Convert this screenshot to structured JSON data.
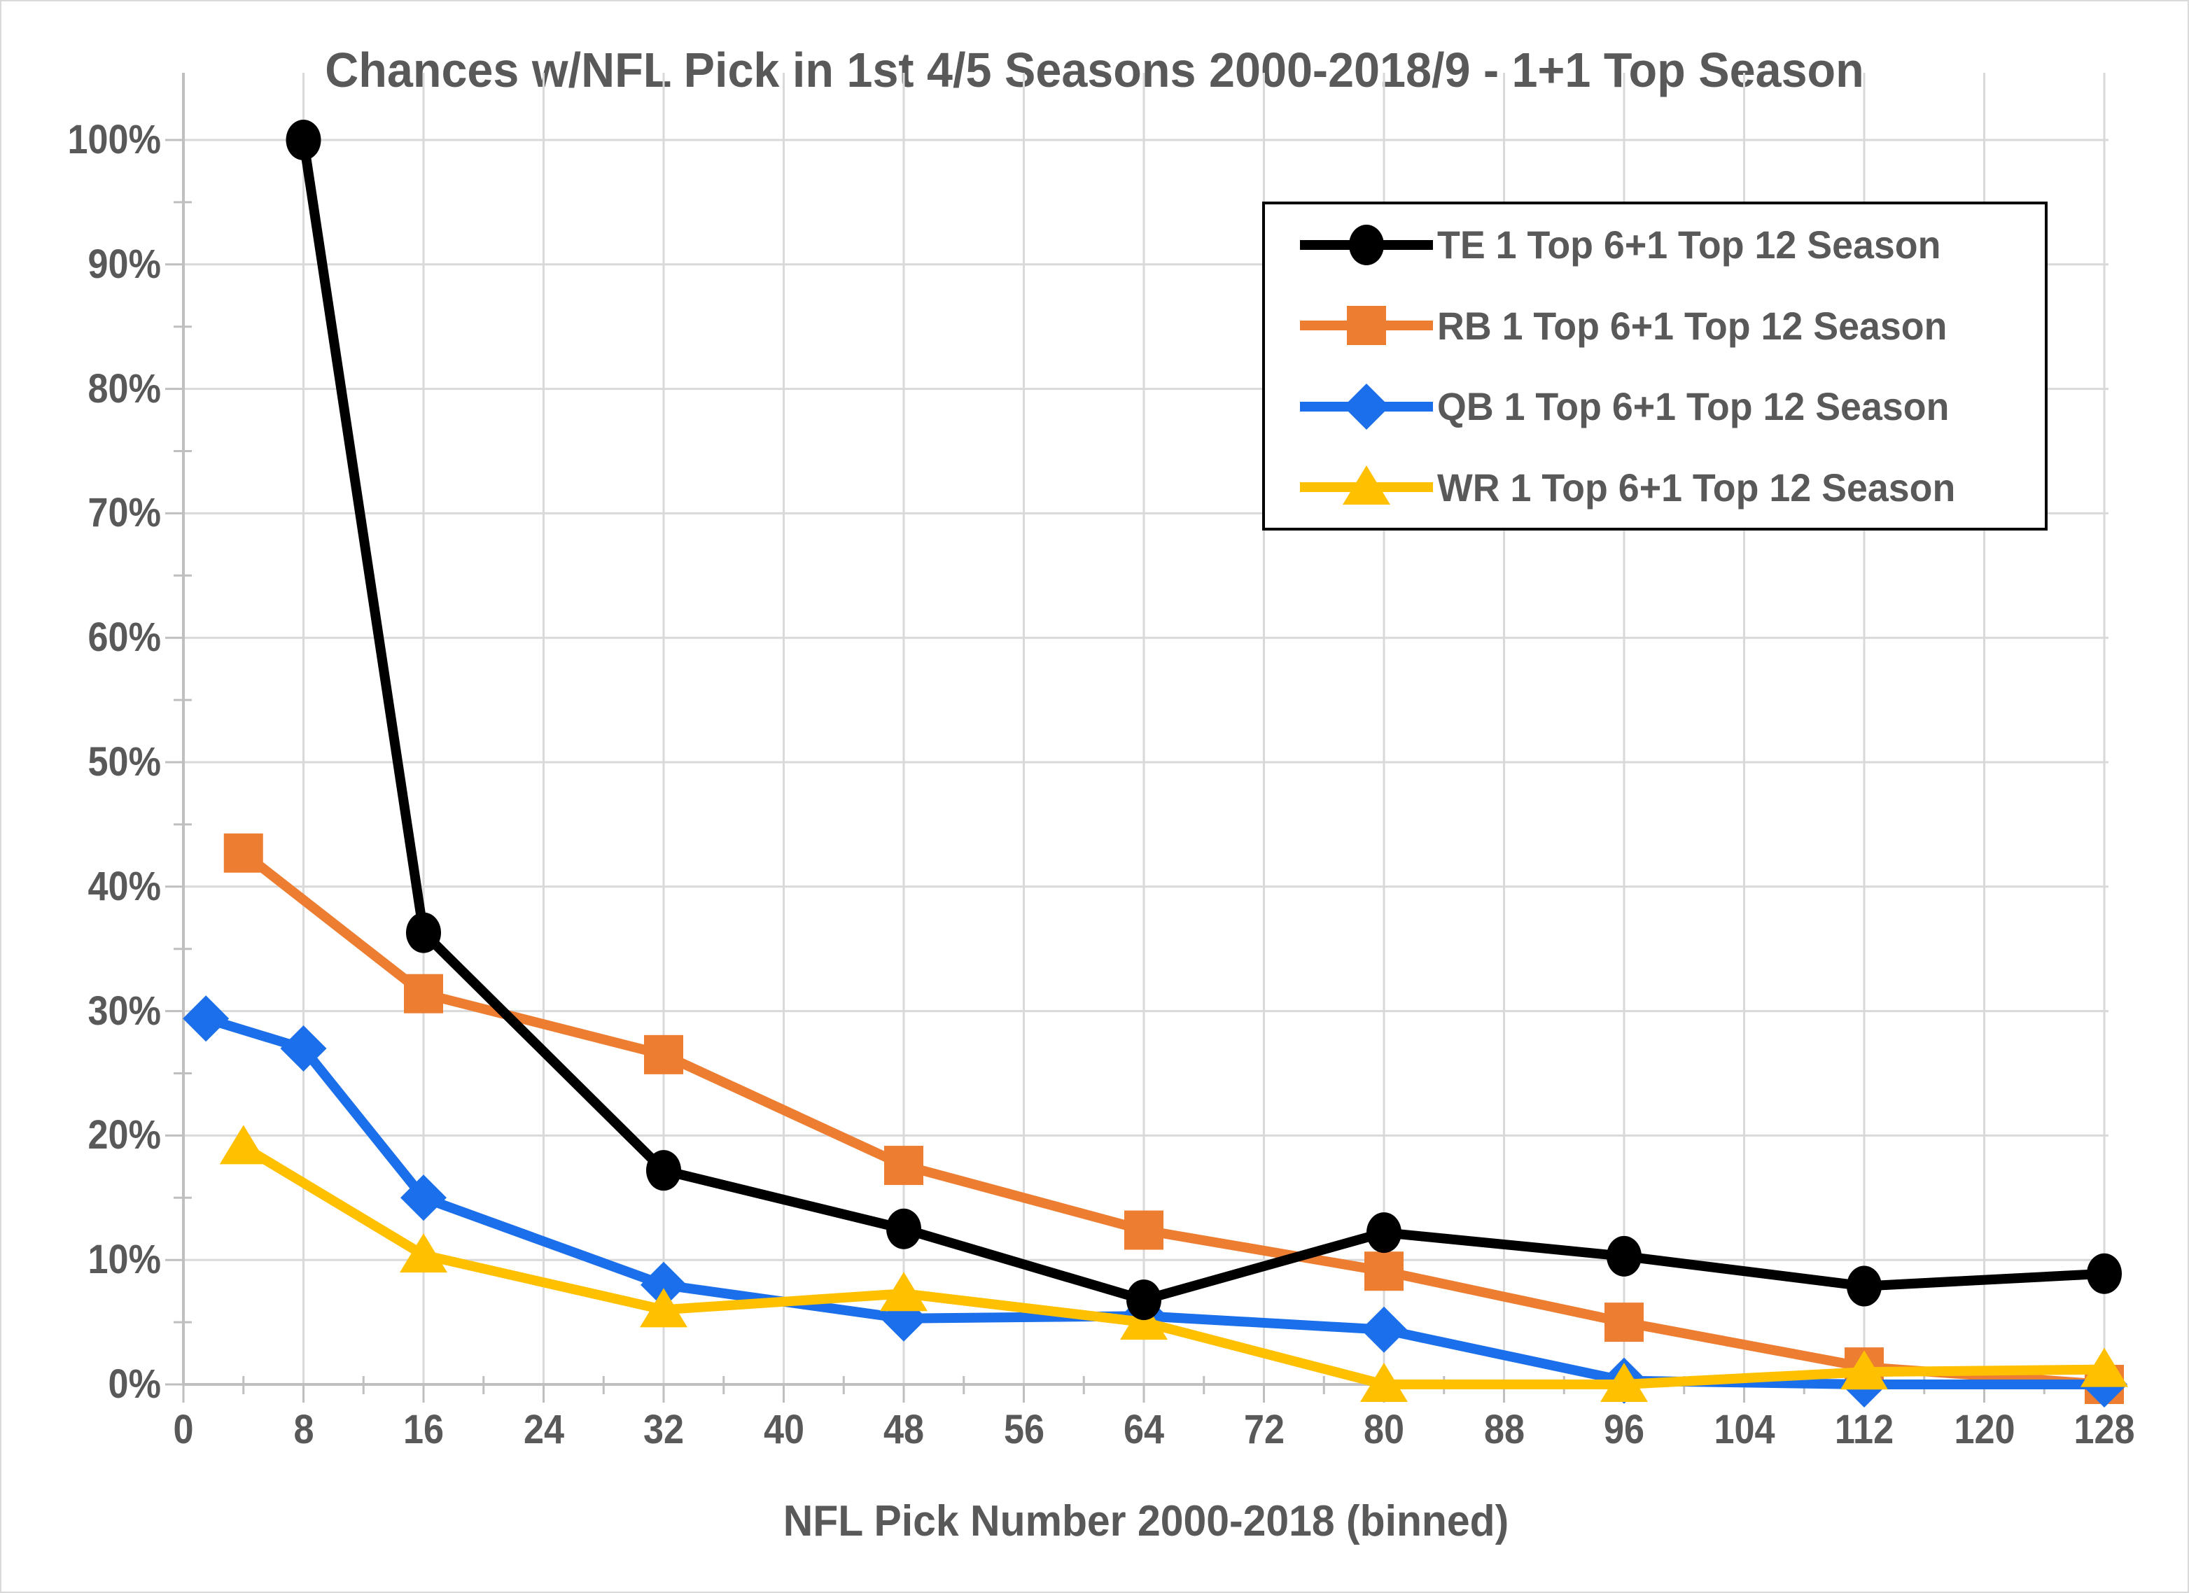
{
  "chart_data": {
    "type": "line",
    "title": "Chances w/NFL Pick in 1st 4/5 Seasons 2000-2018/9 - 1+1 Top Season",
    "xlabel": "NFL Pick Number 2000-2018 (binned)",
    "ylabel": "",
    "xlim": [
      0,
      131
    ],
    "ylim": [
      0,
      105
    ],
    "grid": "both",
    "legend_position": "top-right",
    "x_ticks": [
      0,
      8,
      16,
      24,
      32,
      40,
      48,
      56,
      64,
      72,
      80,
      88,
      96,
      104,
      112,
      120,
      128
    ],
    "y_ticks": [
      "0%",
      "10%",
      "20%",
      "30%",
      "40%",
      "50%",
      "60%",
      "70%",
      "80%",
      "90%",
      "100%"
    ],
    "series": [
      {
        "name": "TE 1 Top 6+1 Top 12 Season",
        "slug": "te",
        "color": "#000000",
        "marker": "circle",
        "points": [
          [
            8,
            100
          ],
          [
            16,
            36.3
          ],
          [
            32,
            17.2
          ],
          [
            48,
            12.5
          ],
          [
            64,
            6.8
          ],
          [
            80,
            12.2
          ],
          [
            96,
            10.3
          ],
          [
            112,
            7.9
          ],
          [
            128,
            8.9
          ]
        ]
      },
      {
        "name": "RB 1 Top 6+1 Top 12 Season",
        "slug": "rb",
        "color": "#ED7D31",
        "marker": "square",
        "points": [
          [
            4,
            42.7
          ],
          [
            16,
            31.4
          ],
          [
            32,
            26.5
          ],
          [
            48,
            17.6
          ],
          [
            64,
            12.4
          ],
          [
            80,
            9.1
          ],
          [
            96,
            5.0
          ],
          [
            112,
            1.4
          ],
          [
            128,
            0
          ]
        ]
      },
      {
        "name": "QB 1 Top 6+1 Top 12 Season",
        "slug": "qb",
        "color": "#1B6FEB",
        "marker": "diamond",
        "points": [
          [
            1.5,
            29.4
          ],
          [
            8,
            27.0
          ],
          [
            16,
            15.0
          ],
          [
            32,
            8.0
          ],
          [
            48,
            5.3
          ],
          [
            64,
            5.5
          ],
          [
            80,
            4.4
          ],
          [
            96,
            0.3
          ],
          [
            112,
            0
          ],
          [
            128,
            0
          ]
        ]
      },
      {
        "name": "WR 1 Top 6+1 Top 12 Season",
        "slug": "wr",
        "color": "#FFC000",
        "marker": "triangle",
        "points": [
          [
            4,
            19.1
          ],
          [
            16,
            10.4
          ],
          [
            32,
            6.0
          ],
          [
            48,
            7.3
          ],
          [
            64,
            5.0
          ],
          [
            80,
            0
          ],
          [
            96,
            0
          ],
          [
            112,
            1.0
          ],
          [
            128,
            1.2
          ]
        ]
      }
    ],
    "colors": {
      "text": "#595959",
      "gridline": "#D9D9D9",
      "axis": "#BFBFBF",
      "legend_border": "#000000",
      "background": "#FFFFFF"
    }
  }
}
